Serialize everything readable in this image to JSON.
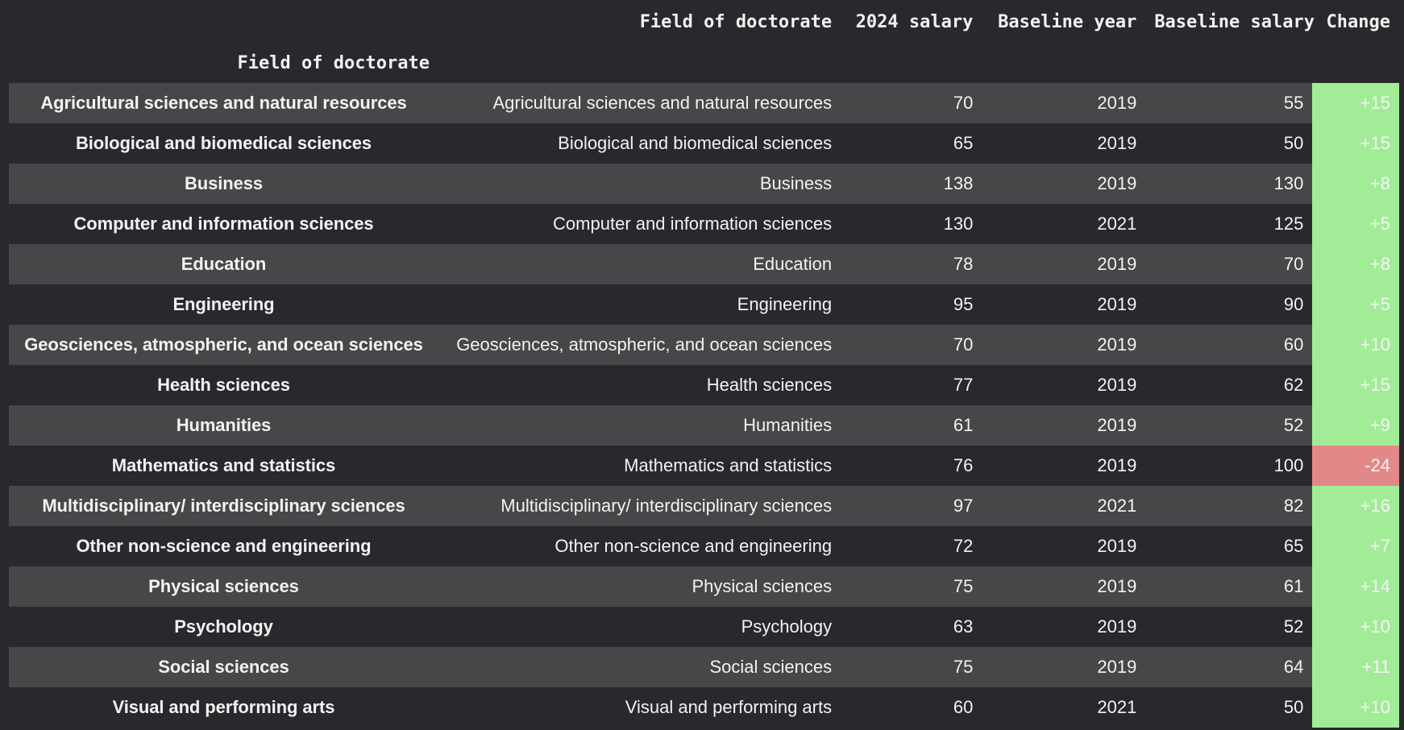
{
  "table": {
    "index_name": "Field of doctorate",
    "columns": [
      "Field of doctorate",
      "2024 salary",
      "Baseline year",
      "Baseline salary",
      "Change"
    ],
    "colors": {
      "positive_change": "#a2ec98",
      "negative_change": "#e38888",
      "row_odd": "#464749",
      "row_even": "#28292c"
    },
    "rows": [
      {
        "index": "Agricultural sciences and natural resources",
        "field": "Agricultural sciences and natural resources",
        "salary_2024": "70",
        "baseline_year": "2019",
        "baseline_salary": "55",
        "change": "+15",
        "sign": "pos"
      },
      {
        "index": "Biological and biomedical sciences",
        "field": "Biological and biomedical sciences",
        "salary_2024": "65",
        "baseline_year": "2019",
        "baseline_salary": "50",
        "change": "+15",
        "sign": "pos"
      },
      {
        "index": "Business",
        "field": "Business",
        "salary_2024": "138",
        "baseline_year": "2019",
        "baseline_salary": "130",
        "change": "+8",
        "sign": "pos"
      },
      {
        "index": "Computer and information sciences",
        "field": "Computer and information sciences",
        "salary_2024": "130",
        "baseline_year": "2021",
        "baseline_salary": "125",
        "change": "+5",
        "sign": "pos"
      },
      {
        "index": "Education",
        "field": "Education",
        "salary_2024": "78",
        "baseline_year": "2019",
        "baseline_salary": "70",
        "change": "+8",
        "sign": "pos"
      },
      {
        "index": "Engineering",
        "field": "Engineering",
        "salary_2024": "95",
        "baseline_year": "2019",
        "baseline_salary": "90",
        "change": "+5",
        "sign": "pos"
      },
      {
        "index": "Geosciences, atmospheric, and ocean sciences",
        "field": "Geosciences, atmospheric, and ocean sciences",
        "salary_2024": "70",
        "baseline_year": "2019",
        "baseline_salary": "60",
        "change": "+10",
        "sign": "pos"
      },
      {
        "index": "Health sciences",
        "field": "Health sciences",
        "salary_2024": "77",
        "baseline_year": "2019",
        "baseline_salary": "62",
        "change": "+15",
        "sign": "pos"
      },
      {
        "index": "Humanities",
        "field": "Humanities",
        "salary_2024": "61",
        "baseline_year": "2019",
        "baseline_salary": "52",
        "change": "+9",
        "sign": "pos"
      },
      {
        "index": "Mathematics and statistics",
        "field": "Mathematics and statistics",
        "salary_2024": "76",
        "baseline_year": "2019",
        "baseline_salary": "100",
        "change": "-24",
        "sign": "neg"
      },
      {
        "index": "Multidisciplinary/ interdisciplinary sciences",
        "field": "Multidisciplinary/ interdisciplinary sciences",
        "salary_2024": "97",
        "baseline_year": "2021",
        "baseline_salary": "82",
        "change": "+16",
        "sign": "pos"
      },
      {
        "index": "Other non-science and engineering",
        "field": "Other non-science and engineering",
        "salary_2024": "72",
        "baseline_year": "2019",
        "baseline_salary": "65",
        "change": "+7",
        "sign": "pos"
      },
      {
        "index": "Physical sciences",
        "field": "Physical sciences",
        "salary_2024": "75",
        "baseline_year": "2019",
        "baseline_salary": "61",
        "change": "+14",
        "sign": "pos"
      },
      {
        "index": "Psychology",
        "field": "Psychology",
        "salary_2024": "63",
        "baseline_year": "2019",
        "baseline_salary": "52",
        "change": "+10",
        "sign": "pos"
      },
      {
        "index": "Social sciences",
        "field": "Social sciences",
        "salary_2024": "75",
        "baseline_year": "2019",
        "baseline_salary": "64",
        "change": "+11",
        "sign": "pos"
      },
      {
        "index": "Visual and performing arts",
        "field": "Visual and performing arts",
        "salary_2024": "60",
        "baseline_year": "2021",
        "baseline_salary": "50",
        "change": "+10",
        "sign": "pos"
      }
    ]
  }
}
